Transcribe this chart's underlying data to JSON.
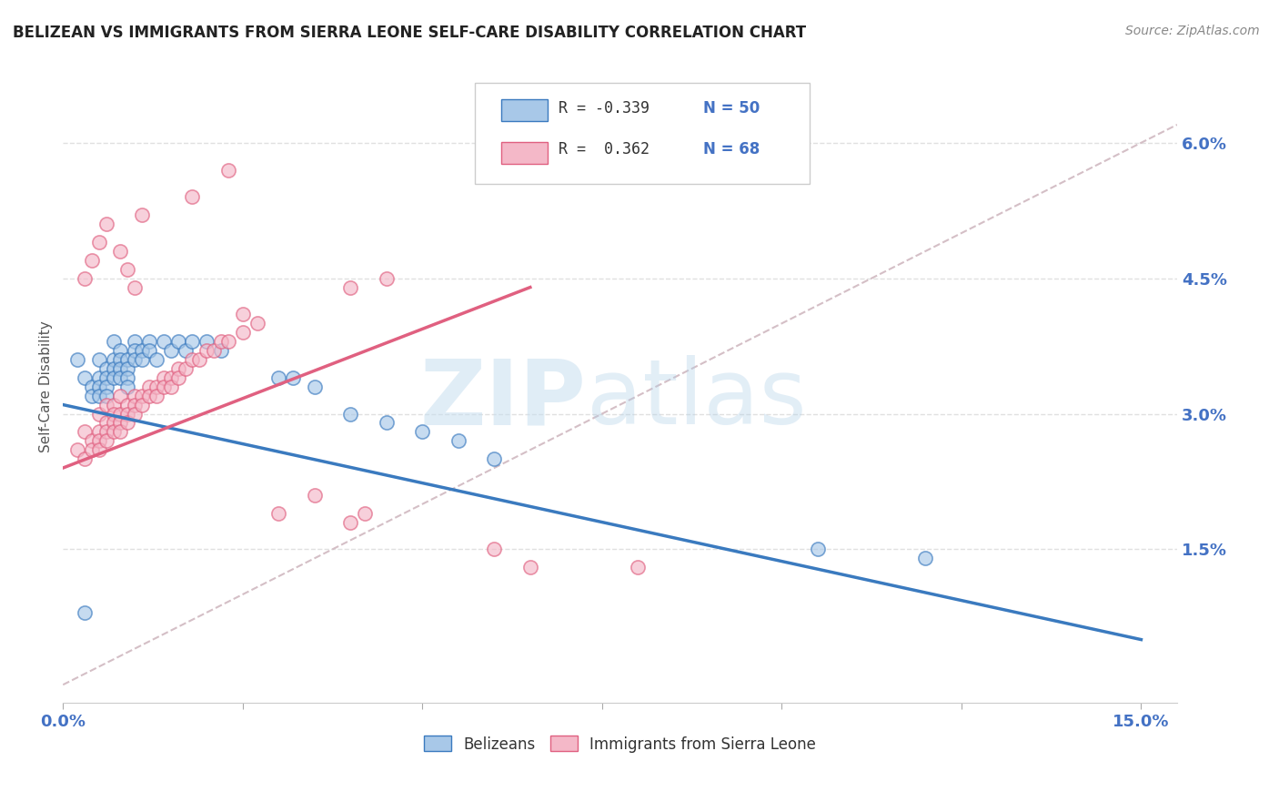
{
  "title": "BELIZEAN VS IMMIGRANTS FROM SIERRA LEONE SELF-CARE DISABILITY CORRELATION CHART",
  "source": "Source: ZipAtlas.com",
  "ylabel": "Self-Care Disability",
  "xlim": [
    0.0,
    0.155
  ],
  "ylim": [
    -0.002,
    0.068
  ],
  "xticks": [
    0.0,
    0.025,
    0.05,
    0.075,
    0.1,
    0.125,
    0.15
  ],
  "xticklabels": [
    "0.0%",
    "",
    "",
    "",
    "",
    "",
    "15.0%"
  ],
  "yticks": [
    0.0,
    0.015,
    0.03,
    0.045,
    0.06
  ],
  "yticklabels": [
    "",
    "1.5%",
    "3.0%",
    "4.5%",
    "6.0%"
  ],
  "legend_r1": "R = -0.339",
  "legend_n1": "N = 50",
  "legend_r2": "R =  0.362",
  "legend_n2": "N = 68",
  "blue_color": "#a8c8e8",
  "pink_color": "#f4b8c8",
  "trend_blue": "#3a7abf",
  "trend_pink": "#e06080",
  "ref_line_color": "#d0b8c0",
  "background_color": "#ffffff",
  "grid_color": "#e0e0e0",
  "title_color": "#222222",
  "axis_label_color": "#555555",
  "tick_color": "#4472c4",
  "watermark_zip": "ZIP",
  "watermark_atlas": "atlas",
  "blue_scatter": [
    [
      0.002,
      0.036
    ],
    [
      0.003,
      0.034
    ],
    [
      0.004,
      0.033
    ],
    [
      0.004,
      0.032
    ],
    [
      0.005,
      0.036
    ],
    [
      0.005,
      0.034
    ],
    [
      0.005,
      0.033
    ],
    [
      0.005,
      0.032
    ],
    [
      0.006,
      0.035
    ],
    [
      0.006,
      0.034
    ],
    [
      0.006,
      0.033
    ],
    [
      0.006,
      0.032
    ],
    [
      0.007,
      0.038
    ],
    [
      0.007,
      0.036
    ],
    [
      0.007,
      0.035
    ],
    [
      0.007,
      0.034
    ],
    [
      0.008,
      0.037
    ],
    [
      0.008,
      0.036
    ],
    [
      0.008,
      0.035
    ],
    [
      0.008,
      0.034
    ],
    [
      0.009,
      0.036
    ],
    [
      0.009,
      0.035
    ],
    [
      0.009,
      0.034
    ],
    [
      0.009,
      0.033
    ],
    [
      0.01,
      0.038
    ],
    [
      0.01,
      0.037
    ],
    [
      0.01,
      0.036
    ],
    [
      0.011,
      0.037
    ],
    [
      0.011,
      0.036
    ],
    [
      0.012,
      0.038
    ],
    [
      0.012,
      0.037
    ],
    [
      0.013,
      0.036
    ],
    [
      0.014,
      0.038
    ],
    [
      0.015,
      0.037
    ],
    [
      0.016,
      0.038
    ],
    [
      0.017,
      0.037
    ],
    [
      0.018,
      0.038
    ],
    [
      0.02,
      0.038
    ],
    [
      0.022,
      0.037
    ],
    [
      0.03,
      0.034
    ],
    [
      0.032,
      0.034
    ],
    [
      0.035,
      0.033
    ],
    [
      0.04,
      0.03
    ],
    [
      0.045,
      0.029
    ],
    [
      0.05,
      0.028
    ],
    [
      0.055,
      0.027
    ],
    [
      0.06,
      0.025
    ],
    [
      0.105,
      0.015
    ],
    [
      0.12,
      0.014
    ],
    [
      0.003,
      0.008
    ]
  ],
  "pink_scatter": [
    [
      0.002,
      0.026
    ],
    [
      0.003,
      0.028
    ],
    [
      0.003,
      0.025
    ],
    [
      0.004,
      0.027
    ],
    [
      0.004,
      0.026
    ],
    [
      0.005,
      0.03
    ],
    [
      0.005,
      0.028
    ],
    [
      0.005,
      0.027
    ],
    [
      0.005,
      0.026
    ],
    [
      0.006,
      0.031
    ],
    [
      0.006,
      0.029
    ],
    [
      0.006,
      0.028
    ],
    [
      0.006,
      0.027
    ],
    [
      0.007,
      0.031
    ],
    [
      0.007,
      0.03
    ],
    [
      0.007,
      0.029
    ],
    [
      0.007,
      0.028
    ],
    [
      0.008,
      0.032
    ],
    [
      0.008,
      0.03
    ],
    [
      0.008,
      0.029
    ],
    [
      0.008,
      0.028
    ],
    [
      0.009,
      0.031
    ],
    [
      0.009,
      0.03
    ],
    [
      0.009,
      0.029
    ],
    [
      0.01,
      0.032
    ],
    [
      0.01,
      0.031
    ],
    [
      0.01,
      0.03
    ],
    [
      0.011,
      0.032
    ],
    [
      0.011,
      0.031
    ],
    [
      0.012,
      0.033
    ],
    [
      0.012,
      0.032
    ],
    [
      0.013,
      0.033
    ],
    [
      0.013,
      0.032
    ],
    [
      0.014,
      0.034
    ],
    [
      0.014,
      0.033
    ],
    [
      0.015,
      0.034
    ],
    [
      0.015,
      0.033
    ],
    [
      0.016,
      0.035
    ],
    [
      0.016,
      0.034
    ],
    [
      0.017,
      0.035
    ],
    [
      0.018,
      0.036
    ],
    [
      0.019,
      0.036
    ],
    [
      0.02,
      0.037
    ],
    [
      0.021,
      0.037
    ],
    [
      0.022,
      0.038
    ],
    [
      0.023,
      0.038
    ],
    [
      0.025,
      0.039
    ],
    [
      0.027,
      0.04
    ],
    [
      0.04,
      0.044
    ],
    [
      0.045,
      0.045
    ],
    [
      0.003,
      0.045
    ],
    [
      0.004,
      0.047
    ],
    [
      0.005,
      0.049
    ],
    [
      0.006,
      0.051
    ],
    [
      0.008,
      0.048
    ],
    [
      0.009,
      0.046
    ],
    [
      0.01,
      0.044
    ],
    [
      0.011,
      0.052
    ],
    [
      0.018,
      0.054
    ],
    [
      0.023,
      0.057
    ],
    [
      0.03,
      0.019
    ],
    [
      0.035,
      0.021
    ],
    [
      0.04,
      0.018
    ],
    [
      0.042,
      0.019
    ],
    [
      0.06,
      0.015
    ],
    [
      0.065,
      0.013
    ],
    [
      0.08,
      0.013
    ],
    [
      0.025,
      0.041
    ]
  ],
  "blue_trend_x": [
    0.0,
    0.15
  ],
  "blue_trend_y": [
    0.031,
    0.005
  ],
  "pink_trend_x": [
    0.0,
    0.065
  ],
  "pink_trend_y": [
    0.024,
    0.044
  ],
  "ref_line_x": [
    0.0,
    0.155
  ],
  "ref_line_y": [
    0.0,
    0.062
  ]
}
